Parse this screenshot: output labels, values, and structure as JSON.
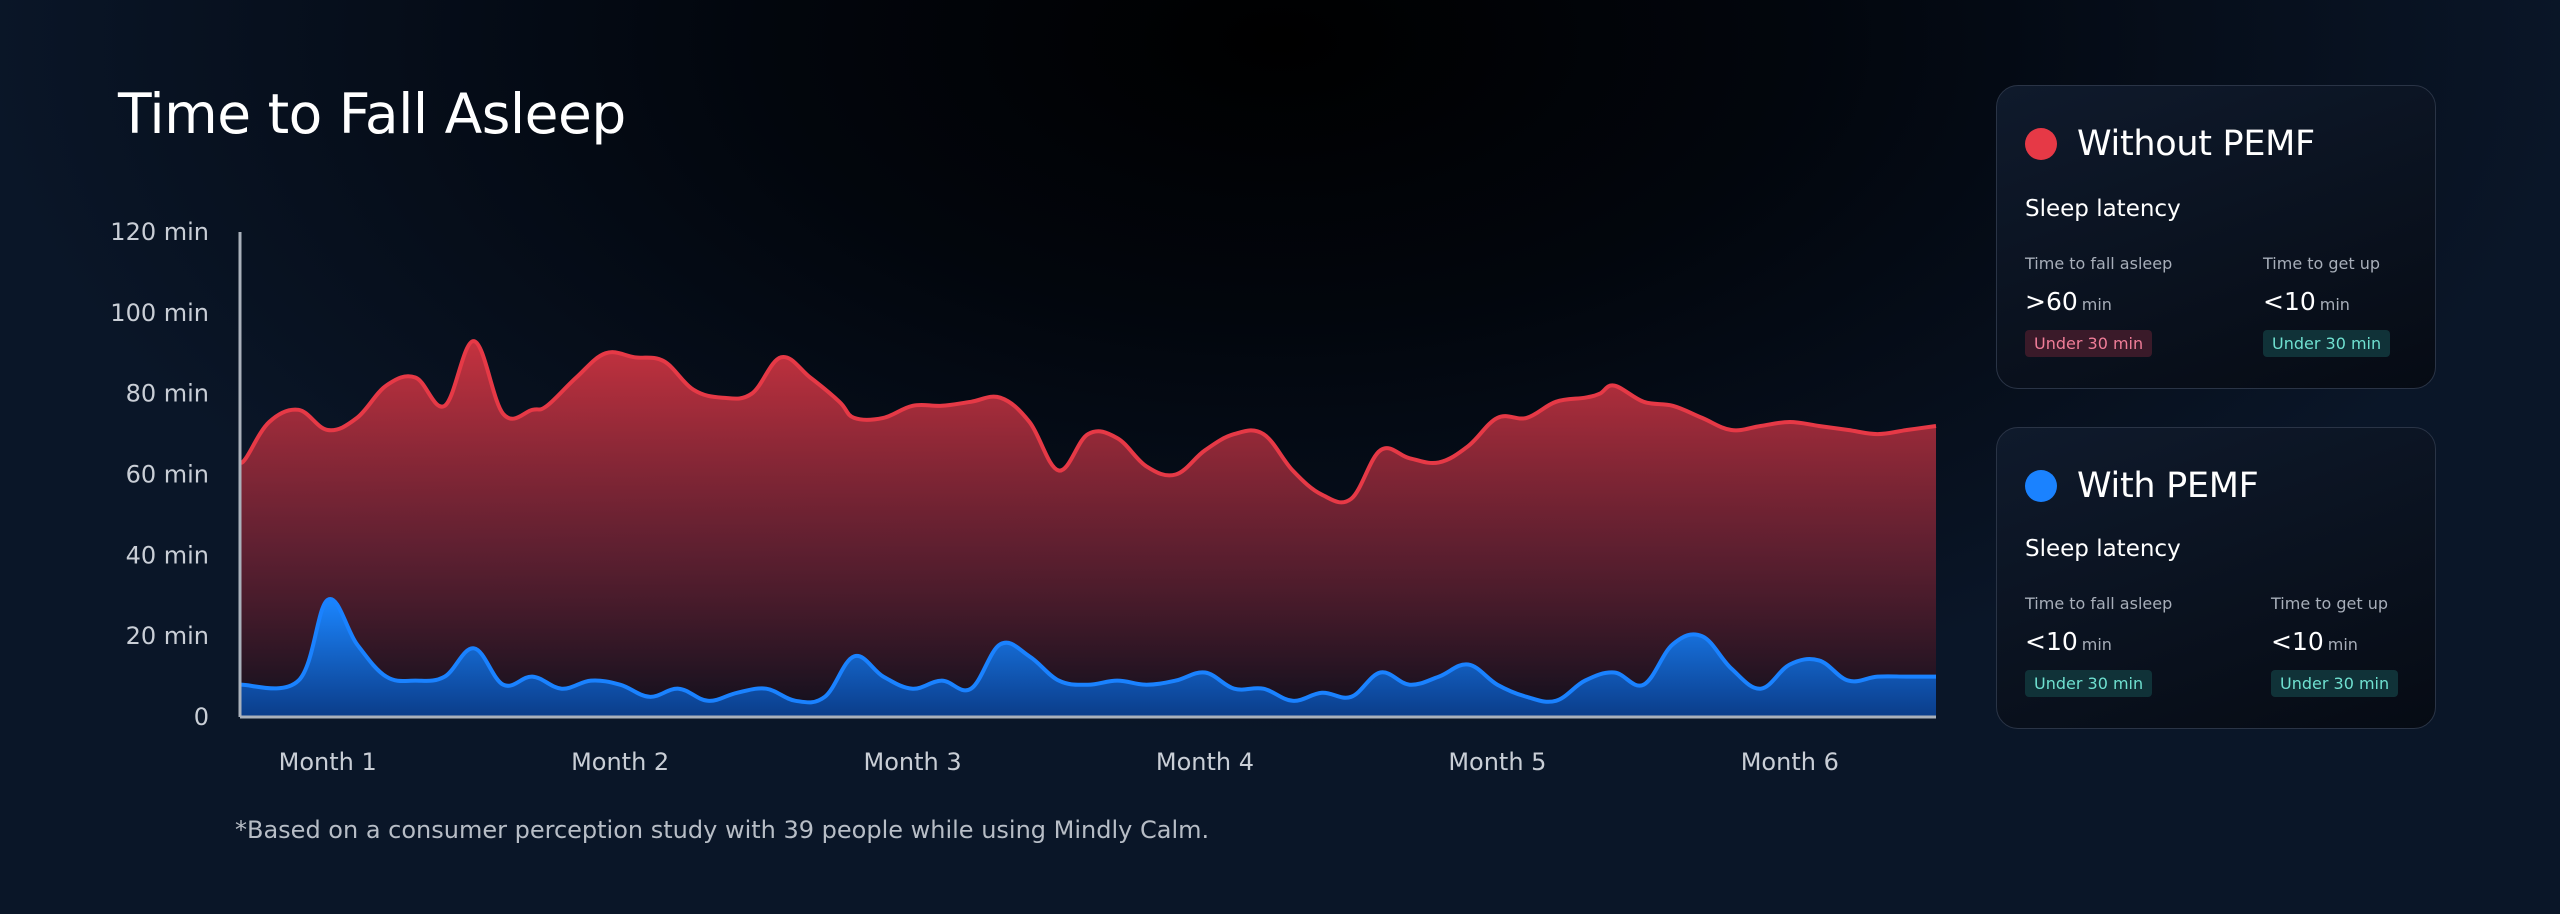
{
  "title": "Time to Fall Asleep",
  "footnote": "*Based on a consumer perception study with 39 people while using Mindly Calm.",
  "colors": {
    "without": "#e63946",
    "with": "#1a82ff",
    "teal_badge": "#6fe0d0",
    "pink_badge": "#f07d98"
  },
  "chart_data": {
    "type": "area",
    "y_ticks": [
      "120 min",
      "100 min",
      "80 min",
      "60 min",
      "40 min",
      "20 min",
      "0"
    ],
    "x_ticks": [
      "Month 1",
      "Month 2",
      "Month 3",
      "Month 4",
      "Month 5",
      "Month 6"
    ],
    "ylim": [
      0,
      120
    ],
    "xlim": [
      0.7,
      6.5
    ],
    "grid": false,
    "series": [
      {
        "name": "Without PEMF",
        "color": "#e63946",
        "x": [
          0.7,
          0.72,
          0.8,
          0.9,
          1.0,
          1.1,
          1.2,
          1.3,
          1.4,
          1.5,
          1.6,
          1.7,
          1.75,
          1.85,
          1.95,
          2.05,
          2.15,
          2.25,
          2.35,
          2.45,
          2.55,
          2.65,
          2.75,
          2.8,
          2.9,
          3.0,
          3.1,
          3.2,
          3.3,
          3.4,
          3.5,
          3.6,
          3.7,
          3.8,
          3.9,
          4.0,
          4.1,
          4.2,
          4.3,
          4.4,
          4.5,
          4.6,
          4.7,
          4.8,
          4.9,
          5.0,
          5.1,
          5.2,
          5.3,
          5.35,
          5.4,
          5.5,
          5.6,
          5.7,
          5.8,
          5.9,
          6.0,
          6.1,
          6.2,
          6.3,
          6.4,
          6.5
        ],
        "values": [
          63,
          64,
          73,
          76,
          71,
          74,
          82,
          84,
          77,
          93,
          75,
          76,
          77,
          84,
          90,
          89,
          88,
          81,
          79,
          80,
          89,
          84,
          78,
          74,
          74,
          77,
          77,
          78,
          79,
          73,
          61,
          70,
          69,
          62,
          60,
          66,
          70,
          70,
          61,
          55,
          54,
          66,
          64,
          63,
          67,
          74,
          74,
          78,
          79,
          80,
          82,
          78,
          77,
          74,
          71,
          72,
          73,
          72,
          71,
          70,
          71,
          72
        ]
      },
      {
        "name": "With PEMF",
        "color": "#1a82ff",
        "x": [
          0.7,
          0.9,
          1.0,
          1.1,
          1.2,
          1.3,
          1.4,
          1.5,
          1.6,
          1.7,
          1.8,
          1.9,
          2.0,
          2.1,
          2.2,
          2.3,
          2.4,
          2.5,
          2.6,
          2.7,
          2.8,
          2.9,
          3.0,
          3.1,
          3.2,
          3.3,
          3.4,
          3.5,
          3.6,
          3.7,
          3.8,
          3.9,
          4.0,
          4.1,
          4.2,
          4.3,
          4.4,
          4.5,
          4.6,
          4.7,
          4.8,
          4.9,
          5.0,
          5.1,
          5.2,
          5.3,
          5.4,
          5.5,
          5.6,
          5.7,
          5.8,
          5.9,
          6.0,
          6.1,
          6.2,
          6.3,
          6.4,
          6.5
        ],
        "values": [
          8,
          9,
          29,
          18,
          10,
          9,
          10,
          17,
          8,
          10,
          7,
          9,
          8,
          5,
          7,
          4,
          6,
          7,
          4,
          5,
          15,
          10,
          7,
          9,
          7,
          18,
          15,
          9,
          8,
          9,
          8,
          9,
          11,
          7,
          7,
          4,
          6,
          5,
          11,
          8,
          10,
          13,
          8,
          5,
          4,
          9,
          11,
          8,
          18,
          20,
          12,
          7,
          13,
          14,
          9,
          10,
          10,
          10
        ]
      }
    ]
  },
  "cards": [
    {
      "title": "Without PEMF",
      "subtitle": "Sleep latency",
      "metrics": [
        {
          "label": "Time to fall asleep",
          "value": ">60",
          "unit": "min",
          "badge": "Under 30 min"
        },
        {
          "label": "Time to get up",
          "value": "<10",
          "unit": "min",
          "badge": "Under 30 min"
        }
      ]
    },
    {
      "title": "With PEMF",
      "subtitle": "Sleep latency",
      "metrics": [
        {
          "label": "Time to fall asleep",
          "value": "<10",
          "unit": "min",
          "badge": "Under 30 min"
        },
        {
          "label": "Time to get up",
          "value": "<10",
          "unit": "min",
          "badge": "Under 30 min"
        }
      ]
    }
  ]
}
